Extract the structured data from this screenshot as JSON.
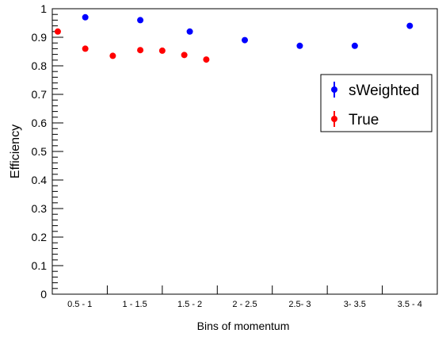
{
  "chart_data": {
    "type": "scatter",
    "xlabel": "Bins of momentum",
    "ylabel": "Efficiency",
    "ylim": [
      0,
      1
    ],
    "yticks": [
      "0",
      "0.1",
      "0.2",
      "0.3",
      "0.4",
      "0.5",
      "0.6",
      "0.7",
      "0.8",
      "0.9",
      "1"
    ],
    "categories": [
      "0.5 - 1",
      "1 - 1.5",
      "1.5 - 2",
      "2 - 2.5",
      "2.5- 3",
      "3- 3.5",
      "3.5 - 4"
    ],
    "legend_position": "top-right",
    "series": [
      {
        "name": "sWeighted",
        "color": "#0000ff",
        "points": [
          {
            "x": 0.6,
            "y": 0.97
          },
          {
            "x": 1.6,
            "y": 0.96
          },
          {
            "x": 2.5,
            "y": 0.92
          },
          {
            "x": 3.5,
            "y": 0.89
          },
          {
            "x": 4.5,
            "y": 0.87
          },
          {
            "x": 5.5,
            "y": 0.87
          },
          {
            "x": 6.5,
            "y": 0.94
          }
        ]
      },
      {
        "name": "True",
        "color": "#ff0000",
        "points": [
          {
            "x": 0.1,
            "y": 0.92
          },
          {
            "x": 0.6,
            "y": 0.86
          },
          {
            "x": 1.1,
            "y": 0.835
          },
          {
            "x": 1.6,
            "y": 0.855
          },
          {
            "x": 2.0,
            "y": 0.853
          },
          {
            "x": 2.4,
            "y": 0.838
          },
          {
            "x": 2.8,
            "y": 0.822
          }
        ]
      }
    ]
  }
}
